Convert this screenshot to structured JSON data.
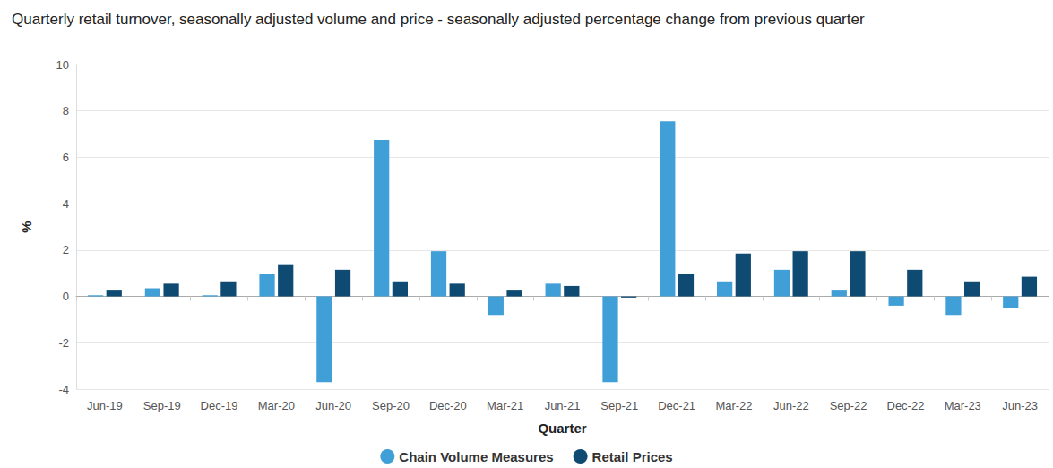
{
  "chart_data": {
    "type": "bar",
    "title": "Quarterly retail turnover, seasonally adjusted volume and price - seasonally adjusted percentage change from previous quarter",
    "x_label": "Quarter",
    "y_label": "%",
    "categories": [
      "Jun-19",
      "Sep-19",
      "Dec-19",
      "Mar-20",
      "Jun-20",
      "Sep-20",
      "Dec-20",
      "Mar-21",
      "Jun-21",
      "Sep-21",
      "Dec-21",
      "Mar-22",
      "Jun-22",
      "Sep-22",
      "Dec-22",
      "Mar-23",
      "Jun-23"
    ],
    "series": [
      {
        "name": "Chain Volume Measures",
        "color": "#409fd6",
        "values": [
          0.05,
          0.35,
          0.05,
          0.95,
          -3.7,
          6.75,
          1.95,
          -0.8,
          0.55,
          -3.7,
          7.55,
          0.65,
          1.15,
          0.25,
          -0.4,
          -0.8,
          -0.5
        ]
      },
      {
        "name": "Retail Prices",
        "color": "#0f4a73",
        "values": [
          0.25,
          0.55,
          0.65,
          1.35,
          1.15,
          0.65,
          0.55,
          0.25,
          0.45,
          -0.05,
          0.95,
          1.85,
          1.95,
          1.95,
          1.15,
          0.65,
          0.85
        ]
      }
    ],
    "ylim": [
      -4,
      10
    ],
    "yticks": [
      -4,
      -2,
      0,
      2,
      4,
      6,
      8,
      10
    ],
    "grid": true,
    "legend": "bottom"
  }
}
